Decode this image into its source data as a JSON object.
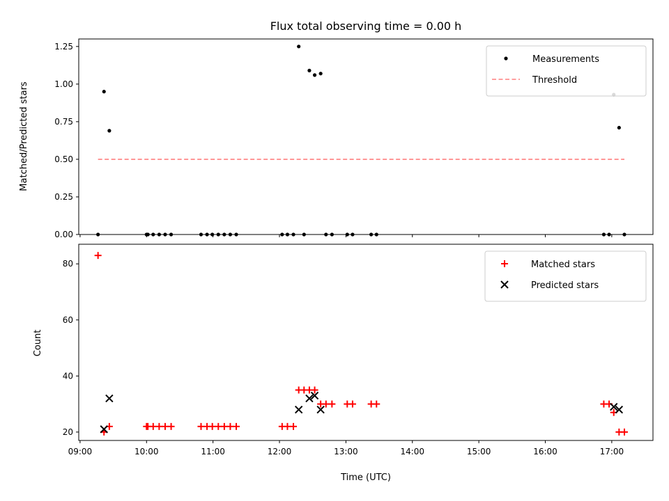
{
  "figure": {
    "title": "Flux total observing time = 0.00 h",
    "xlabel": "Time (UTC)",
    "xticks": [
      "09:00",
      "10:00",
      "11:00",
      "12:00",
      "13:00",
      "14:00",
      "15:00",
      "16:00",
      "17:00"
    ]
  },
  "chart_data": [
    {
      "type": "scatter",
      "ylabel": "Matched/Predicted stars",
      "ylim": [
        0.0,
        1.3
      ],
      "yticks": [
        "0.00",
        "0.25",
        "0.50",
        "0.75",
        "1.00",
        "1.25"
      ],
      "xlim_hours": [
        8.98,
        17.62
      ],
      "legend_position": "top-right",
      "series": [
        {
          "name": "Measurements",
          "marker": "dot",
          "color": "#000000",
          "x": [
            9.27,
            9.36,
            9.44,
            10.0,
            10.02,
            10.1,
            10.19,
            10.28,
            10.37,
            10.82,
            10.91,
            10.99,
            11.08,
            11.17,
            11.26,
            11.35,
            12.04,
            12.12,
            12.21,
            12.29,
            12.37,
            12.45,
            12.53,
            12.62,
            12.7,
            12.79,
            13.02,
            13.1,
            13.38,
            13.46,
            16.88,
            16.96,
            17.03,
            17.11,
            17.19
          ],
          "y": [
            0.0,
            0.95,
            0.69,
            0.0,
            0.0,
            0.0,
            0.0,
            0.0,
            0.0,
            0.0,
            0.0,
            0.0,
            0.0,
            0.0,
            0.0,
            0.0,
            0.0,
            0.0,
            0.0,
            1.25,
            0.0,
            1.09,
            1.06,
            1.07,
            0.0,
            0.0,
            0.0,
            0.0,
            0.0,
            0.0,
            0.0,
            0.0,
            0.93,
            0.71,
            0.0
          ]
        },
        {
          "name": "Threshold",
          "marker": "dashed-line",
          "color": "#ff7f7f",
          "x": [
            9.27,
            17.19
          ],
          "y": [
            0.5,
            0.5
          ]
        }
      ]
    },
    {
      "type": "scatter",
      "ylabel": "Count",
      "ylim": [
        17,
        87
      ],
      "yticks": [
        "20",
        "40",
        "60",
        "80"
      ],
      "xlim_hours": [
        8.98,
        17.62
      ],
      "legend_position": "top-right",
      "series": [
        {
          "name": "Matched stars",
          "marker": "plus",
          "color": "#ff0000",
          "x": [
            9.27,
            9.36,
            9.44,
            10.0,
            10.02,
            10.1,
            10.19,
            10.28,
            10.37,
            10.82,
            10.91,
            10.99,
            11.08,
            11.17,
            11.26,
            11.35,
            12.04,
            12.12,
            12.21,
            12.29,
            12.37,
            12.45,
            12.53,
            12.62,
            12.7,
            12.79,
            13.02,
            13.1,
            13.38,
            13.46,
            16.88,
            16.96,
            17.03,
            17.11,
            17.19
          ],
          "y": [
            83,
            20,
            22,
            22,
            22,
            22,
            22,
            22,
            22,
            22,
            22,
            22,
            22,
            22,
            22,
            22,
            22,
            22,
            22,
            35,
            35,
            35,
            35,
            30,
            30,
            30,
            30,
            30,
            30,
            30,
            30,
            30,
            27,
            20,
            20
          ]
        },
        {
          "name": "Predicted stars",
          "marker": "x",
          "color": "#000000",
          "x": [
            9.36,
            9.44,
            12.29,
            12.45,
            12.53,
            12.62,
            17.03,
            17.11
          ],
          "y": [
            21,
            32,
            28,
            32,
            33,
            28,
            29,
            28
          ]
        }
      ]
    }
  ]
}
